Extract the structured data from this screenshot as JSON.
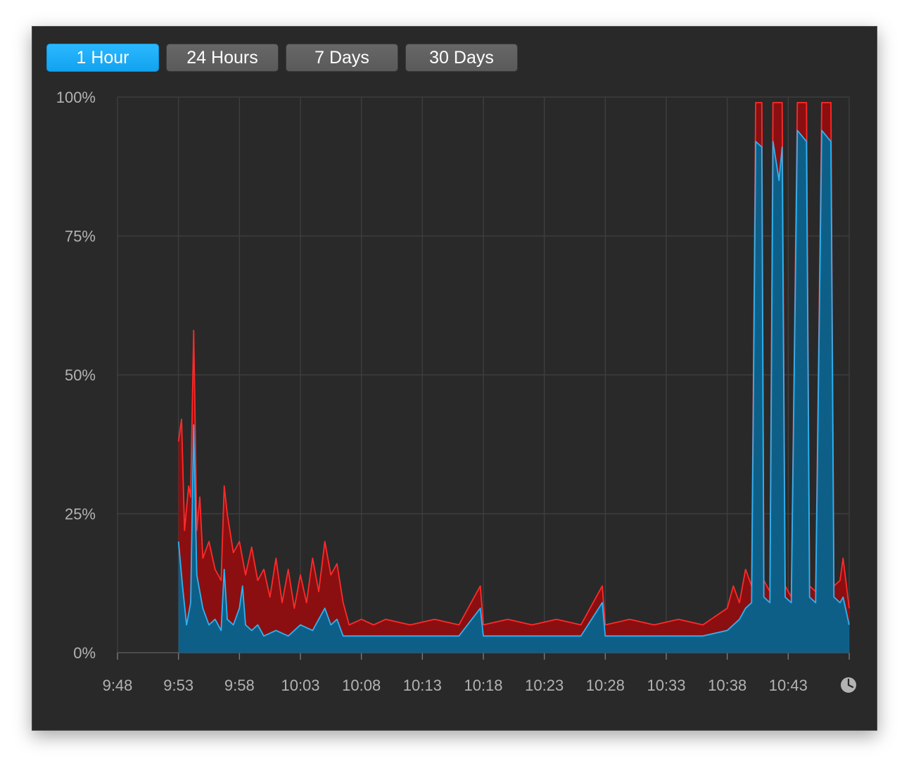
{
  "tabs": [
    {
      "label": "1 Hour",
      "active": true
    },
    {
      "label": "24 Hours",
      "active": false
    },
    {
      "label": "7 Days",
      "active": false
    },
    {
      "label": "30 Days",
      "active": false
    }
  ],
  "colors": {
    "accent": "#1fb0ff",
    "series_red_line": "#ff2a2a",
    "series_red_fill": "#8b0f10",
    "series_blue_line": "#2db3f2",
    "series_blue_fill": "#0e5f88"
  },
  "icons": {
    "history": "clock-icon"
  },
  "chart_data": {
    "type": "area",
    "title": "",
    "xlabel": "",
    "ylabel": "",
    "grid": true,
    "ylim": [
      0,
      100
    ],
    "yticks": [
      "0%",
      "25%",
      "50%",
      "75%",
      "100%"
    ],
    "xticks": [
      "9:48",
      "9:53",
      "9:58",
      "10:03",
      "10:08",
      "10:13",
      "10:18",
      "10:23",
      "10:28",
      "10:33",
      "10:38",
      "10:43"
    ],
    "x_start": "9:48",
    "x_end": "10:48",
    "series": [
      {
        "color": "#ff2a2a",
        "points": [
          [
            "9:53",
            38
          ],
          [
            "9:53:15",
            42
          ],
          [
            "9:53:30",
            22
          ],
          [
            "9:53:50",
            30
          ],
          [
            "9:54",
            28
          ],
          [
            "9:54:15",
            58
          ],
          [
            "9:54:30",
            22
          ],
          [
            "9:54:45",
            28
          ],
          [
            "9:55",
            17
          ],
          [
            "9:55:30",
            20
          ],
          [
            "9:56",
            15
          ],
          [
            "9:56:30",
            13
          ],
          [
            "9:56:45",
            30
          ],
          [
            "9:57",
            25
          ],
          [
            "9:57:30",
            18
          ],
          [
            "9:58",
            20
          ],
          [
            "9:58:30",
            14
          ],
          [
            "9:59",
            19
          ],
          [
            "9:59:30",
            13
          ],
          [
            "10:00",
            15
          ],
          [
            "10:00:30",
            10
          ],
          [
            "10:01",
            17
          ],
          [
            "10:01:30",
            9
          ],
          [
            "10:02",
            15
          ],
          [
            "10:02:30",
            8
          ],
          [
            "10:03",
            14
          ],
          [
            "10:03:30",
            9
          ],
          [
            "10:04",
            17
          ],
          [
            "10:04:30",
            11
          ],
          [
            "10:05",
            20
          ],
          [
            "10:05:30",
            14
          ],
          [
            "10:06",
            16
          ],
          [
            "10:06:30",
            9
          ],
          [
            "10:07",
            5
          ],
          [
            "10:08",
            6
          ],
          [
            "10:09",
            5
          ],
          [
            "10:10",
            6
          ],
          [
            "10:12",
            5
          ],
          [
            "10:14",
            6
          ],
          [
            "10:16",
            5
          ],
          [
            "10:17:45",
            12
          ],
          [
            "10:18",
            5
          ],
          [
            "10:20",
            6
          ],
          [
            "10:22",
            5
          ],
          [
            "10:24",
            6
          ],
          [
            "10:26",
            5
          ],
          [
            "10:27:45",
            12
          ],
          [
            "10:28",
            5
          ],
          [
            "10:30",
            6
          ],
          [
            "10:32",
            5
          ],
          [
            "10:34",
            6
          ],
          [
            "10:36",
            5
          ],
          [
            "10:38",
            8
          ],
          [
            "10:38:30",
            12
          ],
          [
            "10:39",
            9
          ],
          [
            "10:39:30",
            15
          ],
          [
            "10:40",
            12
          ],
          [
            "10:40:20",
            99
          ],
          [
            "10:40:50",
            99
          ],
          [
            "10:41",
            13
          ],
          [
            "10:41:30",
            11
          ],
          [
            "10:41:45",
            99
          ],
          [
            "10:42:30",
            99
          ],
          [
            "10:42:45",
            12
          ],
          [
            "10:43:15",
            10
          ],
          [
            "10:43:45",
            99
          ],
          [
            "10:44:30",
            99
          ],
          [
            "10:44:45",
            12
          ],
          [
            "10:45:15",
            11
          ],
          [
            "10:45:45",
            99
          ],
          [
            "10:46:30",
            99
          ],
          [
            "10:46:45",
            12
          ],
          [
            "10:47:15",
            13
          ],
          [
            "10:47:30",
            17
          ],
          [
            "10:48",
            8
          ]
        ]
      },
      {
        "color": "#2db3f2",
        "points": [
          [
            "9:53",
            20
          ],
          [
            "9:53:20",
            12
          ],
          [
            "9:53:40",
            5
          ],
          [
            "9:54",
            9
          ],
          [
            "9:54:15",
            41
          ],
          [
            "9:54:30",
            14
          ],
          [
            "9:55",
            8
          ],
          [
            "9:55:30",
            5
          ],
          [
            "9:56",
            6
          ],
          [
            "9:56:30",
            4
          ],
          [
            "9:56:45",
            15
          ],
          [
            "9:57",
            6
          ],
          [
            "9:57:30",
            5
          ],
          [
            "9:58",
            8
          ],
          [
            "9:58:15",
            12
          ],
          [
            "9:58:30",
            5
          ],
          [
            "9:59",
            4
          ],
          [
            "9:59:30",
            5
          ],
          [
            "10:00",
            3
          ],
          [
            "10:01",
            4
          ],
          [
            "10:02",
            3
          ],
          [
            "10:03",
            5
          ],
          [
            "10:04",
            4
          ],
          [
            "10:05",
            8
          ],
          [
            "10:05:30",
            5
          ],
          [
            "10:06",
            6
          ],
          [
            "10:06:30",
            3
          ],
          [
            "10:07",
            3
          ],
          [
            "10:08",
            3
          ],
          [
            "10:10",
            3
          ],
          [
            "10:12",
            3
          ],
          [
            "10:14",
            3
          ],
          [
            "10:16",
            3
          ],
          [
            "10:17:45",
            8
          ],
          [
            "10:18",
            3
          ],
          [
            "10:20",
            3
          ],
          [
            "10:22",
            3
          ],
          [
            "10:24",
            3
          ],
          [
            "10:26",
            3
          ],
          [
            "10:27:45",
            9
          ],
          [
            "10:28",
            3
          ],
          [
            "10:30",
            3
          ],
          [
            "10:32",
            3
          ],
          [
            "10:34",
            3
          ],
          [
            "10:36",
            3
          ],
          [
            "10:38",
            4
          ],
          [
            "10:39",
            6
          ],
          [
            "10:39:30",
            8
          ],
          [
            "10:40",
            9
          ],
          [
            "10:40:20",
            92
          ],
          [
            "10:40:50",
            91
          ],
          [
            "10:41",
            10
          ],
          [
            "10:41:30",
            9
          ],
          [
            "10:41:45",
            92
          ],
          [
            "10:42:15",
            85
          ],
          [
            "10:42:30",
            91
          ],
          [
            "10:42:45",
            10
          ],
          [
            "10:43:15",
            9
          ],
          [
            "10:43:45",
            94
          ],
          [
            "10:44:30",
            92
          ],
          [
            "10:44:45",
            10
          ],
          [
            "10:45:15",
            9
          ],
          [
            "10:45:45",
            94
          ],
          [
            "10:46:30",
            92
          ],
          [
            "10:46:45",
            10
          ],
          [
            "10:47:15",
            9
          ],
          [
            "10:47:30",
            10
          ],
          [
            "10:48",
            5
          ]
        ]
      }
    ]
  }
}
